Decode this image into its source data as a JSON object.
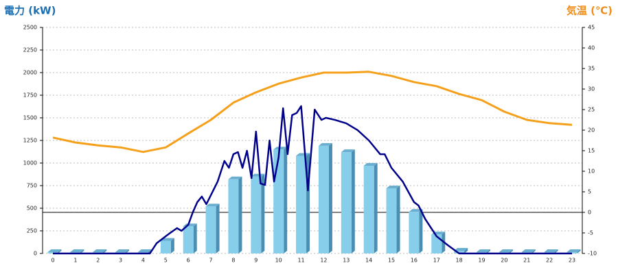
{
  "chart_data": {
    "type": "bar",
    "title": "電力 (kW)",
    "y2_title": "気温 (℃)",
    "categories": [
      "0",
      "1",
      "2",
      "3",
      "4",
      "5",
      "6",
      "7",
      "8",
      "9",
      "10",
      "11",
      "12",
      "13",
      "14",
      "15",
      "16",
      "17",
      "18",
      "19",
      "20",
      "21",
      "22",
      "23"
    ],
    "ylim": [
      0,
      2500
    ],
    "yticks": [
      0,
      250,
      500,
      750,
      1000,
      1250,
      1500,
      1750,
      2000,
      2250,
      2500
    ],
    "y2lim": [
      -10,
      45
    ],
    "y2ticks": [
      -10,
      -5,
      0,
      5,
      10,
      15,
      20,
      25,
      30,
      35,
      40,
      45
    ],
    "grid": true,
    "y2_zero_line": true,
    "series": [
      {
        "type": "bar",
        "color": "#87ceeb",
        "values": [
          15,
          15,
          15,
          15,
          15,
          140,
          300,
          520,
          820,
          850,
          1150,
          1080,
          1190,
          1120,
          970,
          720,
          460,
          210,
          30,
          15,
          15,
          15,
          15,
          15
        ]
      },
      {
        "type": "line",
        "color": "#00008b",
        "x": [
          0,
          4.3,
          4.6,
          5.0,
          5.2,
          5.5,
          5.7,
          6.0,
          6.2,
          6.4,
          6.6,
          6.8,
          7.0,
          7.3,
          7.6,
          7.8,
          8.0,
          8.2,
          8.4,
          8.6,
          8.8,
          9.0,
          9.2,
          9.4,
          9.6,
          9.8,
          10.0,
          10.2,
          10.4,
          10.6,
          10.8,
          11.0,
          11.3,
          11.6,
          11.9,
          12.1,
          12.5,
          13.0,
          13.5,
          14.0,
          14.5,
          14.7,
          15.0,
          15.5,
          16.0,
          16.2,
          16.5,
          17.0,
          17.5,
          18.0,
          23
        ],
        "values": [
          0,
          0,
          114,
          190,
          227,
          280,
          250,
          318,
          455,
          568,
          629,
          545,
          644,
          795,
          1023,
          947,
          1098,
          1121,
          947,
          1136,
          833,
          1348,
          773,
          758,
          1250,
          795,
          1061,
          1606,
          1098,
          1530,
          1553,
          1629,
          697,
          1591,
          1477,
          1500,
          1477,
          1439,
          1364,
          1250,
          1098,
          1098,
          947,
          795,
          568,
          530,
          379,
          190,
          91,
          0,
          0
        ]
      },
      {
        "type": "line",
        "axis": "y2",
        "color": "#f5a01a",
        "values": [
          18.2,
          17,
          16.3,
          15.8,
          14.7,
          15.8,
          19.2,
          22.5,
          26.7,
          29.2,
          31.3,
          32.8,
          34,
          34,
          34.2,
          33.2,
          31.7,
          30.7,
          28.8,
          27.3,
          24.5,
          22.5,
          21.7,
          21.3
        ]
      }
    ]
  }
}
